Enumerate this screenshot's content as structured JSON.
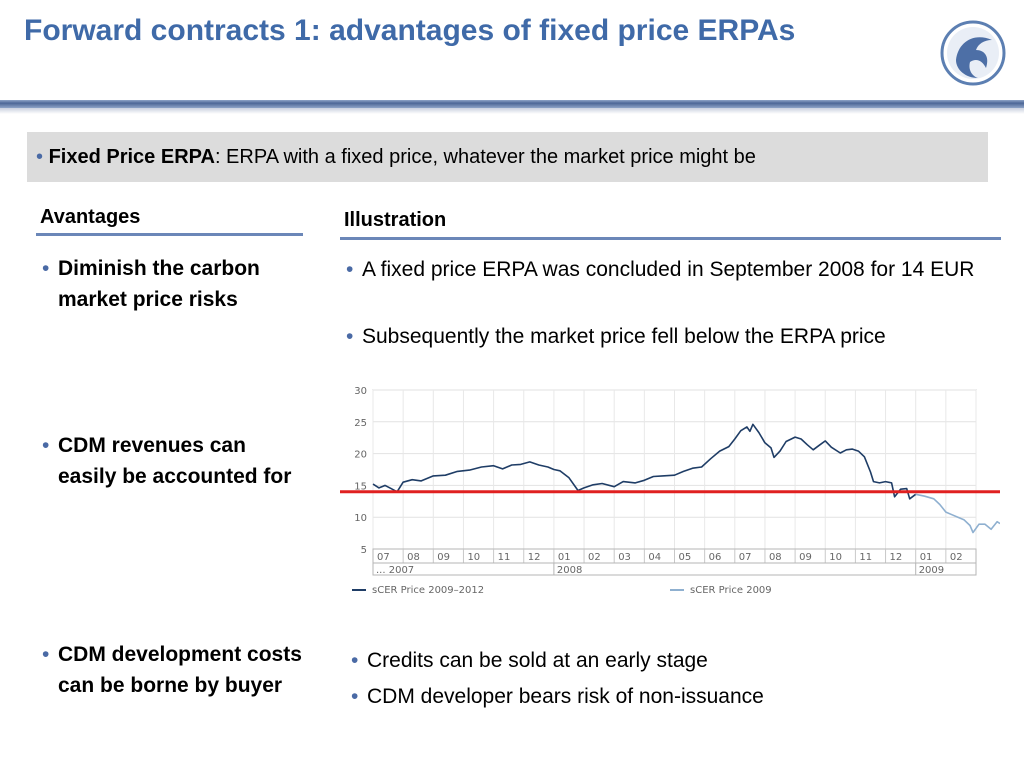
{
  "slide": {
    "title": "Forward contracts 1: advantages of fixed price ERPAs",
    "definition": {
      "term": "Fixed Price ERPA",
      "rest": ": ERPA  with a fixed price, whatever the market price might be"
    }
  },
  "left_column": {
    "heading": "Avantages",
    "items": [
      "Diminish the carbon market price risks",
      "CDM revenues can easily be accounted for",
      "CDM development costs can be borne by buyer"
    ]
  },
  "right_column": {
    "heading": "Illustration",
    "top_bullets": [
      "A fixed price ERPA was concluded in September 2008 for 14 EUR",
      "Subsequently the market price fell below the ERPA price"
    ],
    "bottom_bullets": [
      "Credits can be sold at an early stage",
      "CDM developer bears risk of non-issuance"
    ]
  },
  "colors": {
    "title": "#3f6aa8",
    "accent_rule": "#4d6797",
    "series_dark": "#1f3d66",
    "series_light": "#8fb0d0",
    "fixed_price_line": "#e02020"
  },
  "chart_data": {
    "type": "line",
    "ylim": [
      5,
      30
    ],
    "yticks": [
      5,
      10,
      15,
      20,
      25,
      30
    ],
    "month_labels": [
      "07",
      "08",
      "09",
      "10",
      "11",
      "12",
      "01",
      "02",
      "03",
      "04",
      "05",
      "06",
      "07",
      "08",
      "09",
      "10",
      "11",
      "12",
      "01",
      "02"
    ],
    "year_labels": [
      "... 2007",
      "2008",
      "2009"
    ],
    "year_label_month_index": [
      0,
      6,
      18
    ],
    "legend": [
      "sCER Price 2009–2012",
      "sCER Price 2009"
    ],
    "fixed_price": 14,
    "series": [
      {
        "name": "sCER Price 2009–2012",
        "points": [
          [
            0.0,
            15.2
          ],
          [
            0.2,
            14.6
          ],
          [
            0.4,
            15.0
          ],
          [
            0.6,
            14.5
          ],
          [
            0.8,
            14.0
          ],
          [
            1.0,
            15.5
          ],
          [
            1.3,
            15.9
          ],
          [
            1.6,
            15.7
          ],
          [
            2.0,
            16.5
          ],
          [
            2.4,
            16.6
          ],
          [
            2.8,
            17.2
          ],
          [
            3.2,
            17.4
          ],
          [
            3.6,
            17.9
          ],
          [
            4.0,
            18.1
          ],
          [
            4.3,
            17.6
          ],
          [
            4.6,
            18.2
          ],
          [
            4.9,
            18.3
          ],
          [
            5.2,
            18.7
          ],
          [
            5.5,
            18.2
          ],
          [
            5.8,
            17.9
          ],
          [
            6.0,
            17.5
          ],
          [
            6.2,
            17.3
          ],
          [
            6.5,
            16.2
          ],
          [
            6.8,
            14.2
          ],
          [
            7.0,
            14.6
          ],
          [
            7.3,
            15.1
          ],
          [
            7.6,
            15.3
          ],
          [
            8.0,
            14.8
          ],
          [
            8.3,
            15.6
          ],
          [
            8.7,
            15.4
          ],
          [
            9.0,
            15.8
          ],
          [
            9.3,
            16.4
          ],
          [
            9.6,
            16.5
          ],
          [
            10.0,
            16.6
          ],
          [
            10.3,
            17.2
          ],
          [
            10.6,
            17.7
          ],
          [
            10.9,
            17.9
          ],
          [
            11.2,
            19.2
          ],
          [
            11.5,
            20.4
          ],
          [
            11.8,
            21.1
          ],
          [
            12.0,
            22.3
          ],
          [
            12.2,
            23.6
          ],
          [
            12.4,
            24.2
          ],
          [
            12.5,
            23.5
          ],
          [
            12.6,
            24.6
          ],
          [
            12.8,
            23.3
          ],
          [
            13.0,
            21.7
          ],
          [
            13.2,
            20.9
          ],
          [
            13.3,
            19.4
          ],
          [
            13.5,
            20.4
          ],
          [
            13.7,
            21.9
          ],
          [
            14.0,
            22.6
          ],
          [
            14.2,
            22.3
          ],
          [
            14.4,
            21.4
          ],
          [
            14.6,
            20.6
          ],
          [
            14.8,
            21.3
          ],
          [
            15.0,
            22.0
          ],
          [
            15.2,
            21.0
          ],
          [
            15.5,
            20.1
          ],
          [
            15.7,
            20.6
          ],
          [
            15.9,
            20.7
          ],
          [
            16.1,
            20.4
          ],
          [
            16.3,
            19.5
          ],
          [
            16.5,
            17.1
          ],
          [
            16.6,
            15.6
          ],
          [
            16.8,
            15.4
          ],
          [
            17.0,
            15.6
          ],
          [
            17.2,
            15.4
          ],
          [
            17.3,
            13.2
          ],
          [
            17.5,
            14.4
          ],
          [
            17.7,
            14.5
          ],
          [
            17.8,
            12.9
          ],
          [
            18.0,
            13.6
          ]
        ]
      },
      {
        "name": "sCER Price 2009",
        "points": [
          [
            18.0,
            13.6
          ],
          [
            18.3,
            13.3
          ],
          [
            18.6,
            12.9
          ],
          [
            18.8,
            12.0
          ],
          [
            19.0,
            10.8
          ],
          [
            19.2,
            10.4
          ],
          [
            19.4,
            10.0
          ],
          [
            19.6,
            9.6
          ],
          [
            19.8,
            8.7
          ],
          [
            19.9,
            7.6
          ],
          [
            20.1,
            8.9
          ],
          [
            20.3,
            8.9
          ],
          [
            20.5,
            8.1
          ],
          [
            20.7,
            9.3
          ],
          [
            20.8,
            9.0
          ]
        ]
      }
    ]
  }
}
